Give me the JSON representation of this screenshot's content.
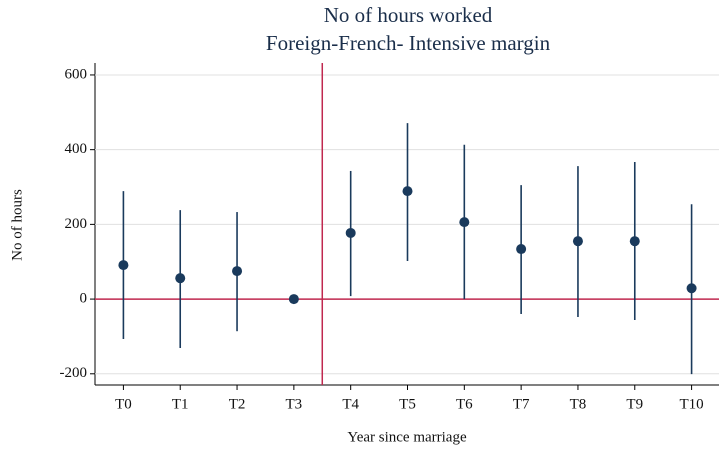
{
  "chart_data": {
    "type": "coefplot",
    "title": [
      "No of hours worked",
      "Foreign-French- Intensive margin"
    ],
    "x_label": "Year since marriage",
    "y_label": "No of hours",
    "categories": [
      "T0",
      "T1",
      "T2",
      "T3",
      "T4",
      "T5",
      "T6",
      "T7",
      "T8",
      "T9",
      "T10"
    ],
    "series": [
      {
        "color": "#1a3a5c",
        "values": [
          91,
          56,
          75,
          0,
          177,
          289,
          206,
          134,
          155,
          155,
          29
        ],
        "lower": [
          -107,
          -131,
          -86,
          0,
          8,
          102,
          0,
          -40,
          -48,
          -56,
          -201
        ],
        "upper": [
          289,
          238,
          233,
          0,
          343,
          471,
          413,
          305,
          356,
          367,
          254
        ]
      }
    ],
    "xlim": [
      -0.5,
      10.5
    ],
    "ylim": [
      -230,
      632
    ],
    "yticks": [
      -200,
      0,
      200,
      400,
      600
    ],
    "xline": 3.5,
    "yline": 0,
    "ref_color": "#c0284f",
    "grid": true
  }
}
